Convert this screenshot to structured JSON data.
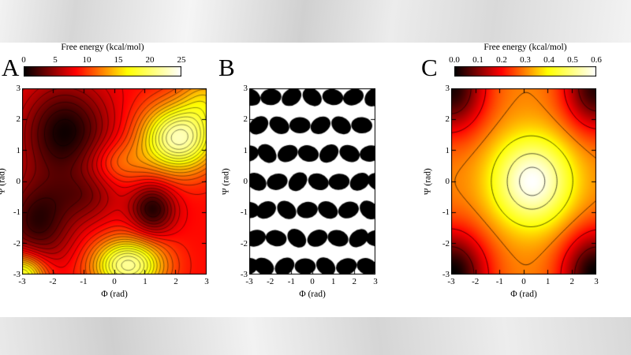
{
  "panels": [
    {
      "label": "A",
      "colorbar_title": "Free energy (kcal/mol)",
      "colorbar_ticks": [
        "0",
        "5",
        "10",
        "15",
        "20",
        "25"
      ],
      "xlabel": "Φ (rad)",
      "ylabel": "Ψ (rad)",
      "xtick_labels": [
        "-3",
        "-2",
        "-1",
        "0",
        "1",
        "2",
        "3"
      ],
      "ytick_labels": [
        "3",
        "2",
        "1",
        "0",
        "-1",
        "-2",
        "-3"
      ]
    },
    {
      "label": "B",
      "xlabel": "Φ (rad)",
      "ylabel": "Ψ (rad)",
      "xtick_labels": [
        "-3",
        "-2",
        "-1",
        "0",
        "1",
        "2",
        "3"
      ],
      "ytick_labels": [
        "3",
        "2",
        "1",
        "0",
        "-1",
        "-2",
        "-3"
      ]
    },
    {
      "label": "C",
      "colorbar_title": "Free energy (kcal/mol)",
      "colorbar_ticks": [
        "0.0",
        "0.1",
        "0.2",
        "0.3",
        "0.4",
        "0.5",
        "0.6"
      ],
      "xlabel": "Φ (rad)",
      "ylabel": "Ψ (rad)",
      "xtick_labels": [
        "-3",
        "-2",
        "-1",
        "0",
        "1",
        "2",
        "3"
      ],
      "ytick_labels": [
        "3",
        "2",
        "1",
        "0",
        "-1",
        "-2",
        "-3"
      ]
    }
  ],
  "chart_data": [
    {
      "type": "heatmap",
      "panel": "A",
      "title": "Free energy (kcal/mol)",
      "xlabel": "Φ (rad)",
      "ylabel": "Ψ (rad)",
      "xlim": [
        -3,
        3
      ],
      "ylim": [
        -3,
        3
      ],
      "zlim": [
        0,
        25
      ],
      "xticks": [
        -3,
        -2,
        -1,
        0,
        1,
        2,
        3
      ],
      "yticks": [
        -3,
        -2,
        -1,
        0,
        1,
        2,
        3
      ],
      "colorbar_ticks": [
        0,
        5,
        10,
        15,
        20,
        25
      ],
      "colormap": [
        [
          0,
          0,
          0,
          0
        ],
        [
          0.33,
          255,
          0,
          0
        ],
        [
          0.66,
          255,
          255,
          0
        ],
        [
          1,
          255,
          255,
          255
        ]
      ],
      "base": 8.5,
      "blobs": [
        {
          "x": -1.6,
          "y": 1.6,
          "sx": 1.0,
          "sy": 1.1,
          "a": -8
        },
        {
          "x": -2.5,
          "y": -1.3,
          "sx": 0.8,
          "sy": 1.0,
          "a": -7
        },
        {
          "x": 1.25,
          "y": -0.9,
          "sx": 0.5,
          "sy": 0.55,
          "a": -7.5
        },
        {
          "x": -0.9,
          "y": -0.5,
          "sx": 0.7,
          "sy": 0.6,
          "a": -3.5
        },
        {
          "x": 2.1,
          "y": 1.4,
          "sx": 0.85,
          "sy": 0.75,
          "a": 14
        },
        {
          "x": 3.0,
          "y": 2.7,
          "sx": 0.6,
          "sy": 0.6,
          "a": 5
        },
        {
          "x": 0.45,
          "y": -2.7,
          "sx": 0.8,
          "sy": 0.6,
          "a": 13
        },
        {
          "x": -3.0,
          "y": -3.0,
          "sx": 0.55,
          "sy": 0.5,
          "a": 11
        },
        {
          "x": 0.1,
          "y": 0.6,
          "sx": 0.7,
          "sy": 0.5,
          "a": 3.5
        }
      ],
      "contour_levels": [
        1,
        2,
        3,
        4,
        5,
        6,
        7,
        8,
        9,
        10,
        11,
        12,
        13,
        14,
        15,
        16,
        17,
        18,
        19,
        20,
        21,
        22,
        23,
        24
      ],
      "contour_width": 0.55
    },
    {
      "type": "ellipse-field",
      "panel": "B",
      "xlabel": "Φ (rad)",
      "ylabel": "Ψ (rad)",
      "xlim": [
        -3,
        3
      ],
      "ylim": [
        -3,
        3
      ],
      "xticks": [
        -3,
        -2,
        -1,
        0,
        1,
        2,
        3
      ],
      "yticks": [
        -3,
        -2,
        -1,
        0,
        1,
        2,
        3
      ],
      "rx": 0.5,
      "ry": 0.26,
      "ellipses": [
        {
          "x": -2.95,
          "y": 2.72,
          "r": -25
        },
        {
          "x": -1.97,
          "y": 2.72,
          "r": 5
        },
        {
          "x": -0.99,
          "y": 2.72,
          "r": 35
        },
        {
          "x": -0.01,
          "y": 2.72,
          "r": -40
        },
        {
          "x": 0.97,
          "y": 2.72,
          "r": -10
        },
        {
          "x": 1.95,
          "y": 2.72,
          "r": 20
        },
        {
          "x": 2.93,
          "y": 2.72,
          "r": 45
        },
        {
          "x": -2.55,
          "y": 1.81,
          "r": 40
        },
        {
          "x": -1.57,
          "y": 1.81,
          "r": -30
        },
        {
          "x": -0.59,
          "y": 1.81,
          "r": 0
        },
        {
          "x": 0.39,
          "y": 1.81,
          "r": 30
        },
        {
          "x": 1.37,
          "y": 1.81,
          "r": -35
        },
        {
          "x": 2.35,
          "y": 1.81,
          "r": -5
        },
        {
          "x": -3.05,
          "y": 0.9,
          "r": 10
        },
        {
          "x": -2.15,
          "y": 0.9,
          "r": -45
        },
        {
          "x": -1.17,
          "y": 0.9,
          "r": 25
        },
        {
          "x": -0.19,
          "y": 0.9,
          "r": -15
        },
        {
          "x": 0.79,
          "y": 0.9,
          "r": 40
        },
        {
          "x": 1.77,
          "y": 0.9,
          "r": -25
        },
        {
          "x": 2.75,
          "y": 0.9,
          "r": 10
        },
        {
          "x": -2.65,
          "y": -0.01,
          "r": -35
        },
        {
          "x": -1.67,
          "y": -0.01,
          "r": 15
        },
        {
          "x": -0.69,
          "y": -0.01,
          "r": 45
        },
        {
          "x": 0.29,
          "y": -0.01,
          "r": -20
        },
        {
          "x": 1.27,
          "y": -0.01,
          "r": 5
        },
        {
          "x": 2.25,
          "y": -0.01,
          "r": 35
        },
        {
          "x": 3.1,
          "y": -0.01,
          "r": -30
        },
        {
          "x": -3.0,
          "y": -0.92,
          "r": -5
        },
        {
          "x": -2.2,
          "y": -0.92,
          "r": 30
        },
        {
          "x": -1.22,
          "y": -0.92,
          "r": -40
        },
        {
          "x": -0.24,
          "y": -0.92,
          "r": 10
        },
        {
          "x": 0.74,
          "y": -0.92,
          "r": -30
        },
        {
          "x": 1.72,
          "y": -0.92,
          "r": 20
        },
        {
          "x": 2.7,
          "y": -0.92,
          "r": -45
        },
        {
          "x": -2.7,
          "y": -1.83,
          "r": 20
        },
        {
          "x": -1.72,
          "y": -1.83,
          "r": -10
        },
        {
          "x": -0.74,
          "y": -1.83,
          "r": -45
        },
        {
          "x": 0.24,
          "y": -1.83,
          "r": 25
        },
        {
          "x": 1.22,
          "y": -1.83,
          "r": -15
        },
        {
          "x": 2.2,
          "y": -1.83,
          "r": 40
        },
        {
          "x": 3.05,
          "y": -1.83,
          "r": 0
        },
        {
          "x": -3.05,
          "y": -2.74,
          "r": 20
        },
        {
          "x": -2.3,
          "y": -2.74,
          "r": -30
        },
        {
          "x": -1.32,
          "y": -2.74,
          "r": 35
        },
        {
          "x": -0.34,
          "y": -2.74,
          "r": 0
        },
        {
          "x": 0.64,
          "y": -2.74,
          "r": -40
        },
        {
          "x": 1.62,
          "y": -2.74,
          "r": 15
        },
        {
          "x": 2.6,
          "y": -2.74,
          "r": -20
        }
      ]
    },
    {
      "type": "heatmap",
      "panel": "C",
      "title": "Free energy (kcal/mol)",
      "xlabel": "Φ (rad)",
      "ylabel": "Ψ (rad)",
      "xlim": [
        -3,
        3
      ],
      "ylim": [
        -3,
        3
      ],
      "zlim": [
        0,
        0.6
      ],
      "xticks": [
        -3,
        -2,
        -1,
        0,
        1,
        2,
        3
      ],
      "yticks": [
        -3,
        -2,
        -1,
        0,
        1,
        2,
        3
      ],
      "colorbar_ticks": [
        0.0,
        0.1,
        0.2,
        0.3,
        0.4,
        0.5,
        0.6
      ],
      "colormap": [
        [
          0,
          0,
          0,
          0
        ],
        [
          0.33,
          255,
          0,
          0
        ],
        [
          0.66,
          255,
          255,
          0
        ],
        [
          1,
          255,
          255,
          255
        ]
      ],
      "base": 0.3,
      "blobs": [
        {
          "x": 0.35,
          "y": 0.0,
          "sx": 1.15,
          "sy": 1.0,
          "a": 0.3
        },
        {
          "x": -3,
          "y": 3,
          "sx": 1.0,
          "sy": 1.0,
          "a": -0.28
        },
        {
          "x": 3,
          "y": 3,
          "sx": 0.95,
          "sy": 0.95,
          "a": -0.27
        },
        {
          "x": -3,
          "y": -3,
          "sx": 1.05,
          "sy": 1.0,
          "a": -0.3
        },
        {
          "x": 3,
          "y": -3,
          "sx": 1.0,
          "sy": 1.0,
          "a": -0.3
        }
      ],
      "contour_levels": [
        0.1,
        0.2,
        0.3,
        0.4,
        0.5,
        0.57
      ],
      "contour_width": 0.8
    }
  ]
}
